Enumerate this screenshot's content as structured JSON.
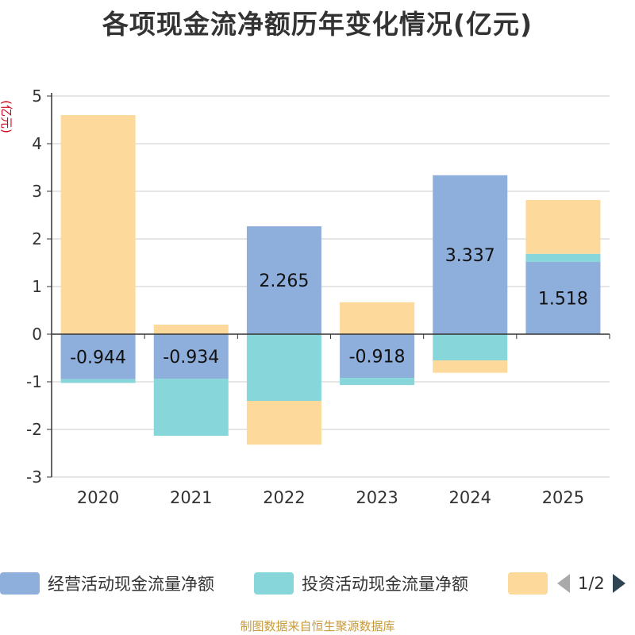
{
  "chart_data": {
    "type": "bar",
    "stacked": true,
    "title": "各项现金流净额历年变化情况(亿元)",
    "ylabel": "(亿元)",
    "xlabel": "",
    "ylim": [
      -3,
      5
    ],
    "yticks": [
      5,
      4,
      3,
      2,
      1,
      0,
      -1,
      -2,
      -3
    ],
    "categories": [
      "2020",
      "2021",
      "2022",
      "2023",
      "2024",
      "2025"
    ],
    "series": [
      {
        "name": "经营活动现金流量净额",
        "color": "#8eaedb",
        "values": [
          -0.944,
          -0.934,
          2.265,
          -0.918,
          3.337,
          1.518
        ],
        "labels": [
          "-0.944",
          "-0.934",
          "2.265",
          "-0.918",
          "3.337",
          "1.518"
        ]
      },
      {
        "name": "投资活动现金流量净额",
        "color": "#87d6d9",
        "values": [
          -0.08,
          -1.2,
          -1.4,
          -0.15,
          -0.55,
          0.17
        ]
      },
      {
        "name": "",
        "color": "#fdd99b",
        "values": [
          4.6,
          0.2,
          -0.92,
          0.67,
          -0.26,
          1.13
        ]
      }
    ],
    "grid": true,
    "legend_position": "bottom"
  },
  "legend": {
    "page_indicator": "1/2",
    "prev_icon": "triangle-left-icon",
    "next_icon": "triangle-right-icon"
  },
  "footer": {
    "source": "制图数据来自恒生聚源数据库"
  }
}
